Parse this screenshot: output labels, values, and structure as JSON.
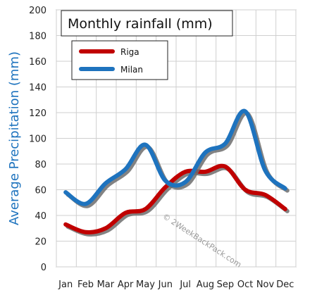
{
  "chart_data": {
    "type": "line",
    "title": "Monthly rainfall (mm)",
    "xlabel": "",
    "ylabel": "Average Precipitation (mm)",
    "categories": [
      "Jan",
      "Feb",
      "Mar",
      "Apr",
      "May",
      "Jun",
      "Jul",
      "Aug",
      "Sep",
      "Oct",
      "Nov",
      "Dec"
    ],
    "ylim": [
      0,
      200
    ],
    "yticks": [
      0,
      20,
      40,
      60,
      80,
      100,
      120,
      140,
      160,
      180,
      200
    ],
    "grid": true,
    "legend_position": "top-left",
    "series": [
      {
        "name": "Riga",
        "color": "#c00000",
        "values": [
          33,
          27,
          30,
          42,
          45,
          62,
          74,
          74,
          78,
          60,
          56,
          45
        ]
      },
      {
        "name": "Milan",
        "color": "#1e73be",
        "values": [
          58,
          49,
          65,
          76,
          95,
          67,
          66,
          89,
          96,
          121,
          75,
          61
        ]
      }
    ],
    "watermark": "© 2WeekBackPack.com"
  }
}
